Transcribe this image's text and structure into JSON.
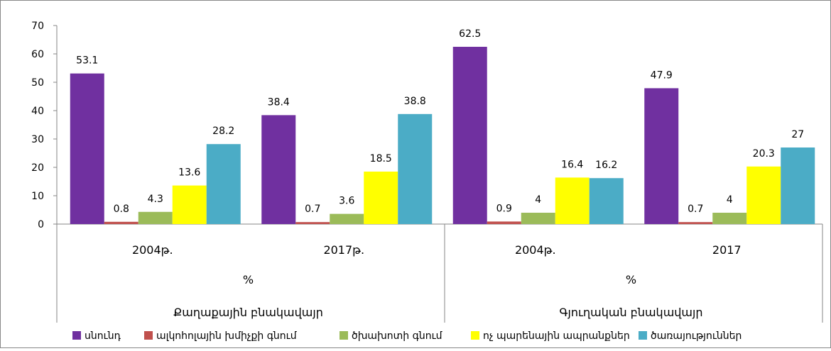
{
  "chart_data": {
    "type": "bar",
    "groups": [
      {
        "label": "Քաղաքային բնակավայր",
        "unit_label": "%",
        "categories": [
          "2004թ.",
          "2017թ."
        ]
      },
      {
        "label": "Գյուղական բնակավայր",
        "unit_label": "%",
        "categories": [
          "2004թ.",
          "2017"
        ]
      }
    ],
    "series": [
      {
        "name": "սնունդ",
        "color": "#7030A0",
        "values": [
          53.1,
          38.4,
          62.5,
          47.9
        ],
        "labels": [
          "53.1",
          "38.4",
          "62.5",
          "47.9"
        ]
      },
      {
        "name": "ալկոհոլային խմիչքի գնում",
        "color": "#C0504D",
        "values": [
          0.8,
          0.7,
          0.9,
          0.7
        ],
        "labels": [
          "0.8",
          "0.7",
          "0.9",
          "0.7"
        ]
      },
      {
        "name": "ծխախոտի գնում",
        "color": "#9BBB59",
        "values": [
          4.3,
          3.6,
          4,
          4
        ],
        "labels": [
          "4.3",
          "3.6",
          "4",
          "4"
        ]
      },
      {
        "name": "ոչ պարենային ապրանքներ",
        "color": "#FFFF00",
        "values": [
          13.6,
          18.5,
          16.4,
          20.3
        ],
        "labels": [
          "13.6",
          "18.5",
          "16.4",
          "20.3"
        ]
      },
      {
        "name": "ծառայություններ",
        "color": "#4BACC6",
        "values": [
          28.2,
          38.8,
          16.2,
          27
        ],
        "labels": [
          "28.2",
          "38.8",
          "16.2",
          "27"
        ]
      }
    ],
    "ylim": [
      0,
      70
    ],
    "yticks": [
      "0",
      "10",
      "20",
      "30",
      "40",
      "50",
      "60",
      "70"
    ],
    "grid": false,
    "legend_position": "bottom"
  }
}
